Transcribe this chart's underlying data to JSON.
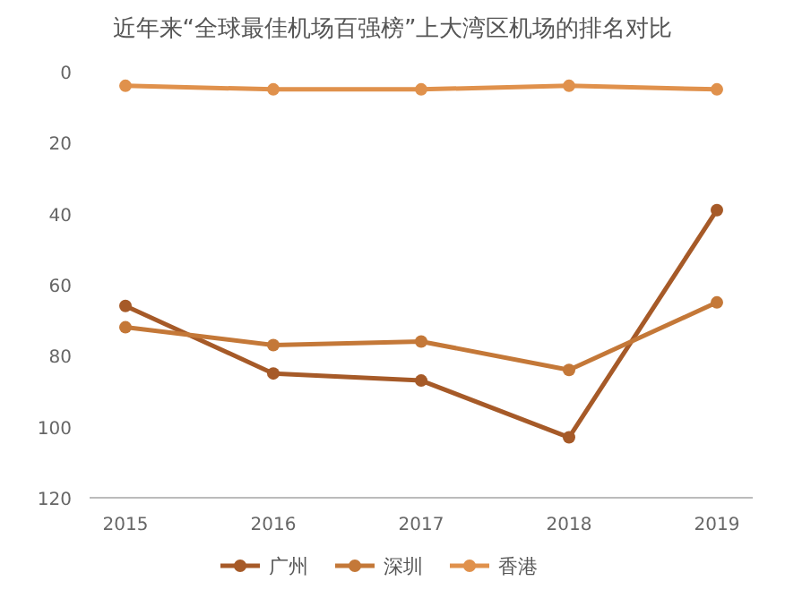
{
  "chart_data": {
    "type": "line",
    "title": "近年来“全球最佳机场百强榜”上大湾区机场的排名对比",
    "categories": [
      "2015",
      "2016",
      "2017",
      "2018",
      "2019"
    ],
    "series": [
      {
        "name": "广州",
        "color": "#a65a28",
        "values": [
          66,
          85,
          87,
          103,
          39
        ]
      },
      {
        "name": "深圳",
        "color": "#c47838",
        "values": [
          72,
          77,
          76,
          84,
          65
        ]
      },
      {
        "name": "香港",
        "color": "#e0914c",
        "values": [
          4,
          5,
          5,
          4,
          5
        ]
      }
    ],
    "ylim": [
      120,
      0
    ],
    "yticks": [
      0,
      20,
      40,
      60,
      80,
      100,
      120
    ],
    "marker": "circle",
    "line_style": "solid",
    "legend": "bottom",
    "grid": false
  }
}
